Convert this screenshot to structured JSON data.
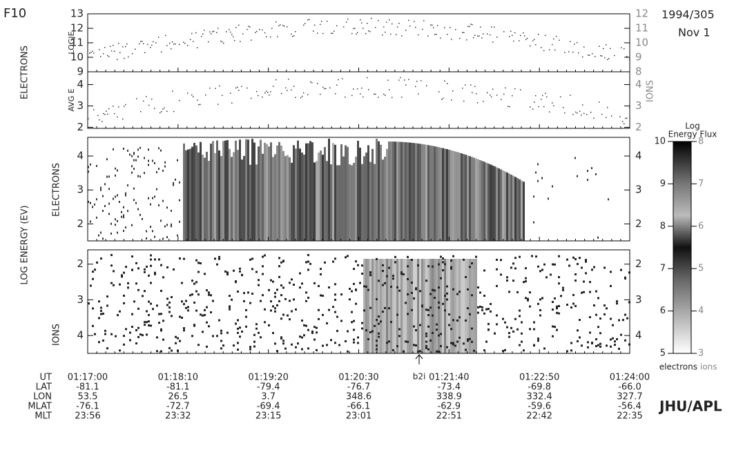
{
  "header": {
    "satellite": "F10",
    "date": "1994/305",
    "day": "Nov 1"
  },
  "side_labels": {
    "electrons_top": "ELECTRONS",
    "ions_top": "IONS",
    "log_energy": "LOG ENERGY (EV)",
    "electrons": "ELECTRONS",
    "ions": "IONS"
  },
  "panels": [
    {
      "label": "LOGJE",
      "ylim": [
        9,
        13
      ],
      "yticks": [
        9,
        10,
        11,
        12,
        13
      ],
      "y2lim": [
        8,
        12
      ],
      "y2ticks": [
        8,
        9,
        10,
        11,
        12
      ]
    },
    {
      "label": "AVG E",
      "ylim": [
        1.95,
        4.6
      ],
      "yticks": [
        2,
        3,
        4
      ],
      "y2lim": [
        1.95,
        4.6
      ],
      "y2ticks": [
        2,
        3,
        4
      ]
    },
    {
      "ylim": [
        1.5,
        4.55
      ],
      "yticks": [
        2,
        3,
        4
      ],
      "y2lim": [
        1.5,
        4.55
      ],
      "y2ticks": [
        2,
        3,
        4
      ]
    },
    {
      "ylim": [
        4.5,
        1.6
      ],
      "yticks": [
        2,
        3,
        4
      ],
      "y2lim": [
        4.5,
        1.6
      ],
      "y2ticks": [
        2,
        3,
        4
      ]
    }
  ],
  "colorbar": {
    "title_line1": "Log",
    "title_line2": "Energy Flux",
    "ylim": [
      5,
      10
    ],
    "yticks": [
      5,
      6,
      7,
      8,
      9,
      10
    ],
    "y2lim": [
      3,
      8
    ],
    "y2ticks": [
      3,
      4,
      5,
      6,
      7,
      8
    ],
    "label_left": "electrons",
    "label_right": "ions"
  },
  "annotation": "b2i",
  "time_table": {
    "rows": [
      {
        "label": "UT",
        "values": [
          "01:17:00",
          "01:18:10",
          "01:19:20",
          "01:20:30",
          "01:21:40",
          "01:22:50",
          "01:24:00"
        ]
      },
      {
        "label": "LAT",
        "values": [
          "-81.1",
          "-81.1",
          "-79.4",
          "-76.7",
          "-73.4",
          "-69.8",
          "-66.0"
        ]
      },
      {
        "label": "LON",
        "values": [
          "53.5",
          "26.5",
          "3.7",
          "348.6",
          "338.9",
          "332.4",
          "327.7"
        ]
      },
      {
        "label": "MLAT",
        "values": [
          "-76.1",
          "-72.7",
          "-69.4",
          "-66.1",
          "-62.9",
          "-59.6",
          "-56.4"
        ]
      },
      {
        "label": "MLT",
        "values": [
          "23:56",
          "23:32",
          "23:15",
          "23:01",
          "22:51",
          "22:42",
          "22:35"
        ]
      }
    ]
  },
  "credit": "JHU/APL"
}
